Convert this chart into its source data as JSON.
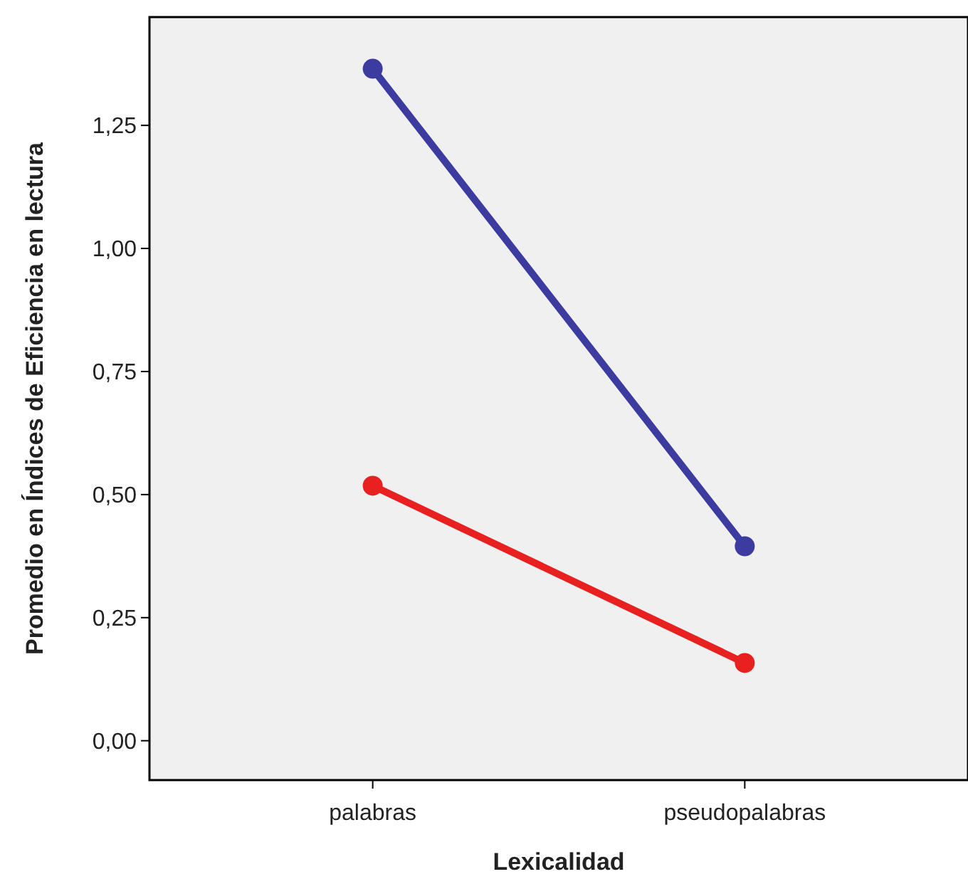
{
  "chart_data": {
    "type": "line",
    "xlabel": "Lexicalidad",
    "ylabel": "Promedio en Índices de Eficiencia en lectura",
    "categories": [
      "palabras",
      "pseudopalabras"
    ],
    "series": [
      {
        "color": "#3b3ba0",
        "values": [
          1.365,
          0.395
        ]
      },
      {
        "color": "#e82020",
        "values": [
          0.518,
          0.158
        ]
      }
    ],
    "ylim": [
      -0.08,
      1.47
    ],
    "yticks": [
      {
        "value": 0,
        "label": "0,00"
      },
      {
        "value": 0.25,
        "label": "0,25"
      },
      {
        "value": 0.5,
        "label": "0,50"
      },
      {
        "value": 0.75,
        "label": "0,75"
      },
      {
        "value": 1,
        "label": "1,00"
      },
      {
        "value": 1.25,
        "label": "1,25"
      }
    ],
    "grid": false,
    "marker": "circle",
    "line_style": "solid"
  }
}
